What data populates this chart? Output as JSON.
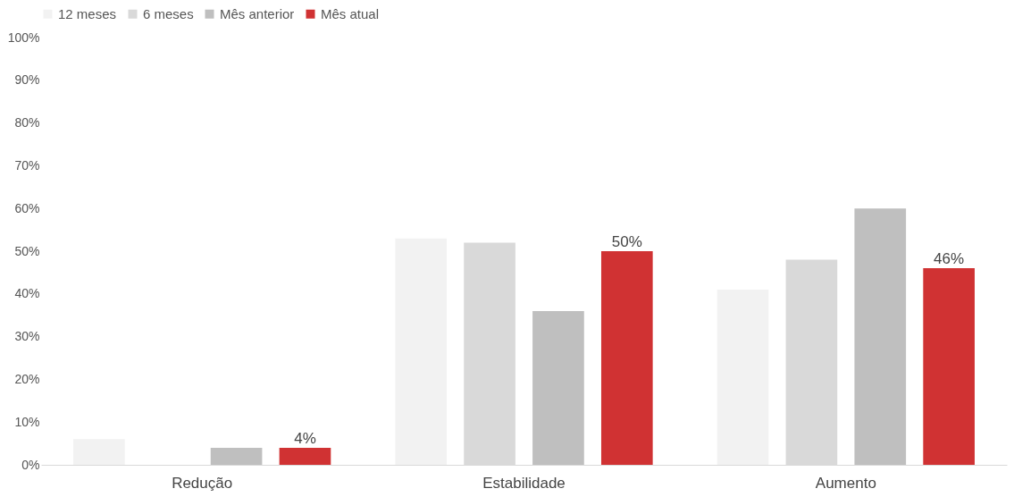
{
  "chart_data": {
    "type": "bar",
    "categories": [
      "Redução",
      "Estabilidade",
      "Aumento"
    ],
    "series": [
      {
        "name": "12 meses",
        "color": "#f2f2f2",
        "values": [
          6,
          53,
          41
        ]
      },
      {
        "name": "6 meses",
        "color": "#d9d9d9",
        "values": [
          0,
          52,
          48
        ]
      },
      {
        "name": "Mês anterior",
        "color": "#bfbfbf",
        "values": [
          4,
          36,
          60
        ]
      },
      {
        "name": "Mês atual",
        "color": "#d03233",
        "values": [
          4,
          50,
          46
        ],
        "value_labels": [
          "4%",
          "50%",
          "46%"
        ]
      }
    ],
    "ylim": [
      0,
      100
    ],
    "yticks": [
      {
        "value": 0,
        "label": "0%"
      },
      {
        "value": 10,
        "label": "10%"
      },
      {
        "value": 20,
        "label": "20%"
      },
      {
        "value": 30,
        "label": "30%"
      },
      {
        "value": 40,
        "label": "40%"
      },
      {
        "value": 50,
        "label": "50%"
      },
      {
        "value": 60,
        "label": "60%"
      },
      {
        "value": 70,
        "label": "70%"
      },
      {
        "value": 80,
        "label": "80%"
      },
      {
        "value": 90,
        "label": "90%"
      },
      {
        "value": 100,
        "label": "100%"
      }
    ],
    "grid": false,
    "legend": "top"
  }
}
